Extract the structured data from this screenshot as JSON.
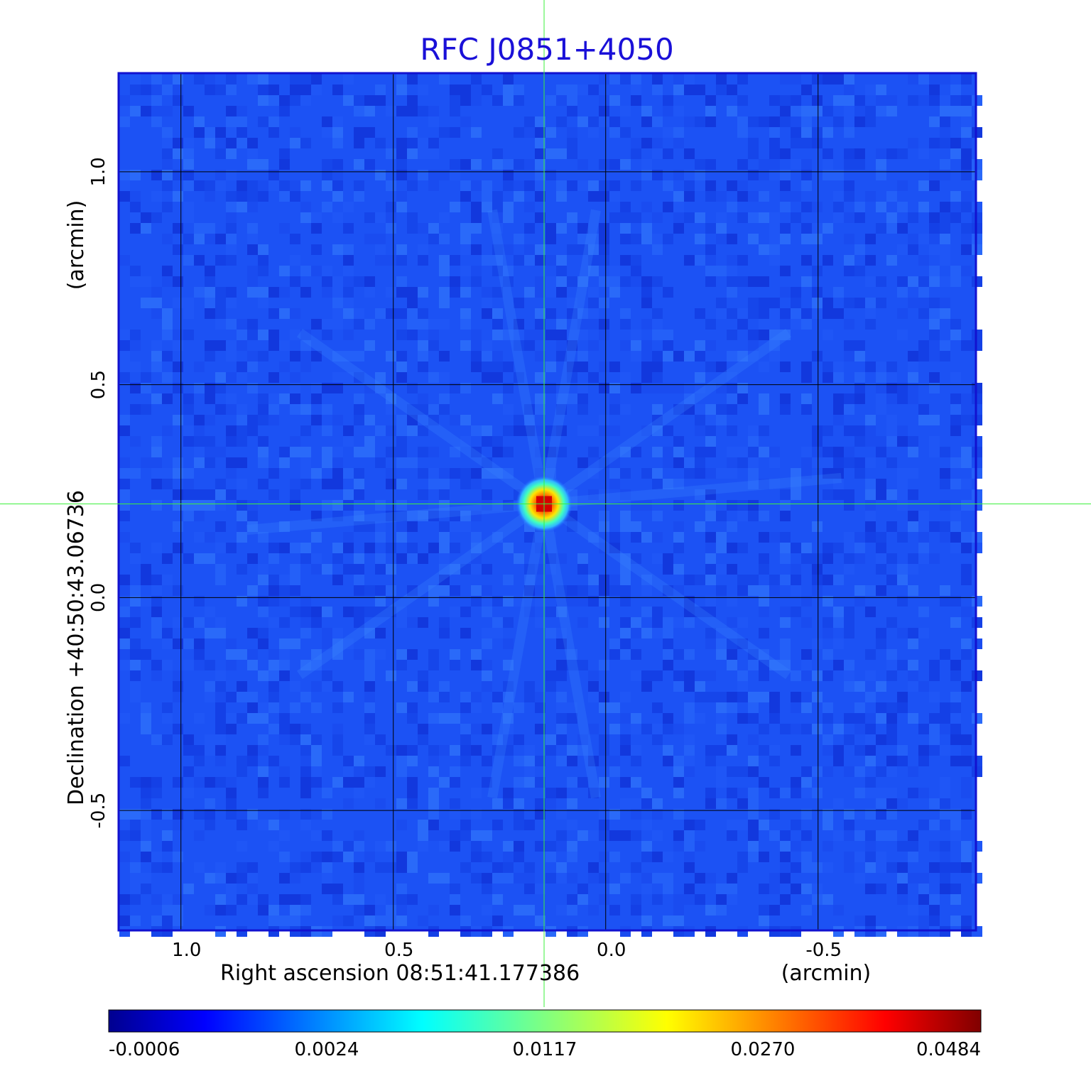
{
  "chart_data": {
    "type": "heatmap",
    "title": "RFC J0851+4050",
    "xlabel": "Right ascension  08:51:41.177386",
    "xunit": "(arcmin)",
    "ylabel": "Declination  +40:50:43.06736",
    "yunit": "(arcmin)",
    "x_ticks": [
      1.0,
      0.5,
      0.0,
      -0.5
    ],
    "x_tick_labels": [
      "1.0",
      "0.5",
      "0.0",
      "-0.5"
    ],
    "y_ticks": [
      1.0,
      0.5,
      0.0,
      -0.5
    ],
    "y_tick_labels": [
      "1.0",
      "0.5",
      "0.0",
      "-0.5"
    ],
    "xlim": [
      1.145,
      -0.87
    ],
    "ylim": [
      -0.78,
      1.23
    ],
    "grid": true,
    "crosshair": {
      "x": 0.145,
      "y": 0.22
    },
    "peak": {
      "x": 0.145,
      "y": 0.22,
      "value": 0.0484
    },
    "colorbar": {
      "colormap": "jet",
      "tick_labels": [
        "-0.0006",
        "0.0024",
        "0.0117",
        "0.0270",
        "0.0484"
      ]
    },
    "colors": {
      "title": "#1a10d8",
      "frame": "#1212d0",
      "grid": "#000000",
      "crosshair": "#3cf03c"
    }
  }
}
